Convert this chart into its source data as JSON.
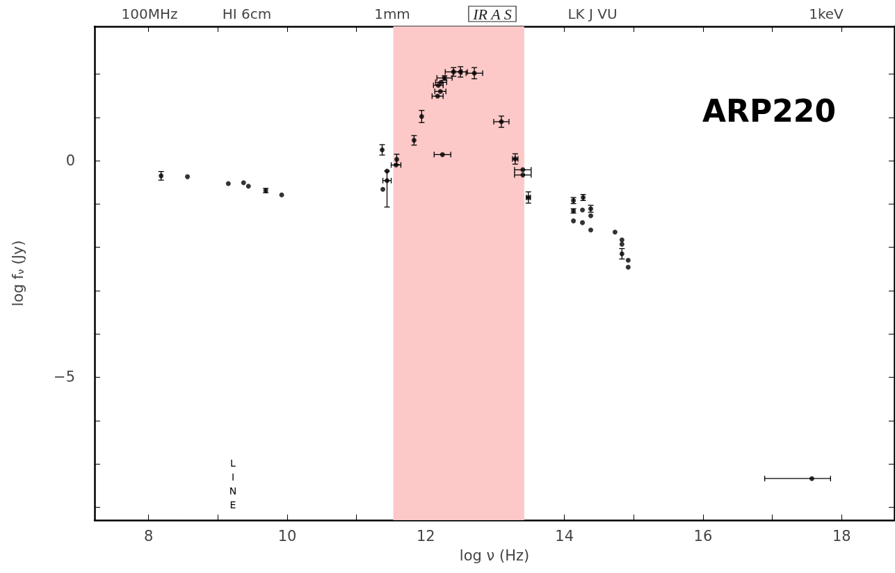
{
  "chart_data": {
    "type": "scatter",
    "title": "ARP220",
    "xlabel": "log ν (Hz)",
    "ylabel": "log f$_{ν}$ (Jy)",
    "marker": "circle",
    "grid": false,
    "xlim": [
      7.22,
      18.76
    ],
    "xticks": [
      8,
      {
        "value": 9,
        "label": null
      },
      10,
      {
        "value": 11,
        "label": null
      },
      12,
      {
        "value": 13,
        "label": null
      },
      14,
      {
        "value": 15,
        "label": null
      },
      16,
      {
        "value": 17,
        "label": null
      },
      18
    ],
    "ylim": [
      -8.3,
      3.1
    ],
    "yticks": [
      {
        "value": -8,
        "label": null
      },
      {
        "value": -7,
        "label": null
      },
      {
        "value": -6,
        "label": null
      },
      {
        "value": -5,
        "label": "−5"
      },
      {
        "value": -4,
        "label": null
      },
      {
        "value": -3,
        "label": null
      },
      {
        "value": -2,
        "label": null
      },
      {
        "value": -1,
        "label": null
      },
      0,
      {
        "value": 1,
        "label": null
      },
      {
        "value": 2,
        "label": null
      }
    ],
    "bands": [
      {
        "axis": "x",
        "from": 11.53,
        "to": 13.42,
        "color": "#fcc8c8"
      }
    ],
    "annotations": [
      "100MHz",
      "HI 6cm",
      "1mm",
      "IR A S",
      "LK J VU",
      "1keV",
      "LINE"
    ],
    "series": [
      {
        "color": "#000000",
        "x": [
          8.18,
          8.56,
          9.15,
          9.37,
          9.44,
          9.69,
          9.92,
          11.37,
          11.44,
          11.44,
          11.38,
          11.58,
          11.57,
          11.83,
          11.94,
          12.24,
          12.17,
          12.21,
          12.18,
          12.22,
          12.27,
          12.4,
          12.5,
          12.7,
          13.09,
          13.29,
          13.4,
          13.4,
          13.48,
          14.13,
          14.13,
          14.13,
          14.27,
          14.26,
          14.26,
          14.38,
          14.38,
          14.38,
          14.73,
          14.83,
          14.83,
          14.83,
          14.92,
          14.92,
          17.57
        ],
        "values": [
          -0.35,
          -0.37,
          -0.53,
          -0.51,
          -0.59,
          -0.69,
          -0.79,
          0.25,
          -0.24,
          -0.46,
          -0.66,
          0.03,
          -0.1,
          0.47,
          1.02,
          0.14,
          1.49,
          1.6,
          1.74,
          1.81,
          1.91,
          2.05,
          2.05,
          2.02,
          0.9,
          0.04,
          -0.21,
          -0.33,
          -0.85,
          -0.92,
          -1.16,
          -1.39,
          -0.85,
          -1.14,
          -1.43,
          -1.11,
          -1.27,
          -1.6,
          -1.65,
          -1.83,
          -1.93,
          -2.15,
          -2.3,
          -2.46,
          -7.34
        ],
        "errors": [
          0.1,
          null,
          null,
          null,
          null,
          0.05,
          null,
          0.12,
          [
            -1.07,
            -0.24
          ],
          null,
          null,
          0.12,
          null,
          0.11,
          0.14,
          null,
          null,
          null,
          null,
          null,
          0.05,
          0.1,
          0.12,
          0.13,
          0.13,
          0.12,
          null,
          null,
          0.13,
          0.07,
          0.05,
          null,
          0.07,
          null,
          null,
          0.08,
          null,
          null,
          null,
          null,
          null,
          0.12,
          null,
          null,
          null
        ],
        "xerrors": [
          null,
          null,
          null,
          null,
          null,
          null,
          null,
          null,
          null,
          0.06,
          null,
          null,
          0.07,
          null,
          null,
          0.12,
          0.08,
          0.08,
          0.07,
          0.08,
          0.11,
          0.12,
          0.1,
          0.12,
          0.11,
          0.04,
          0.12,
          0.12,
          0.03,
          null,
          null,
          null,
          null,
          null,
          null,
          null,
          null,
          null,
          null,
          null,
          null,
          null,
          null,
          null,
          [
            16.89,
            17.84
          ]
        ]
      }
    ]
  }
}
